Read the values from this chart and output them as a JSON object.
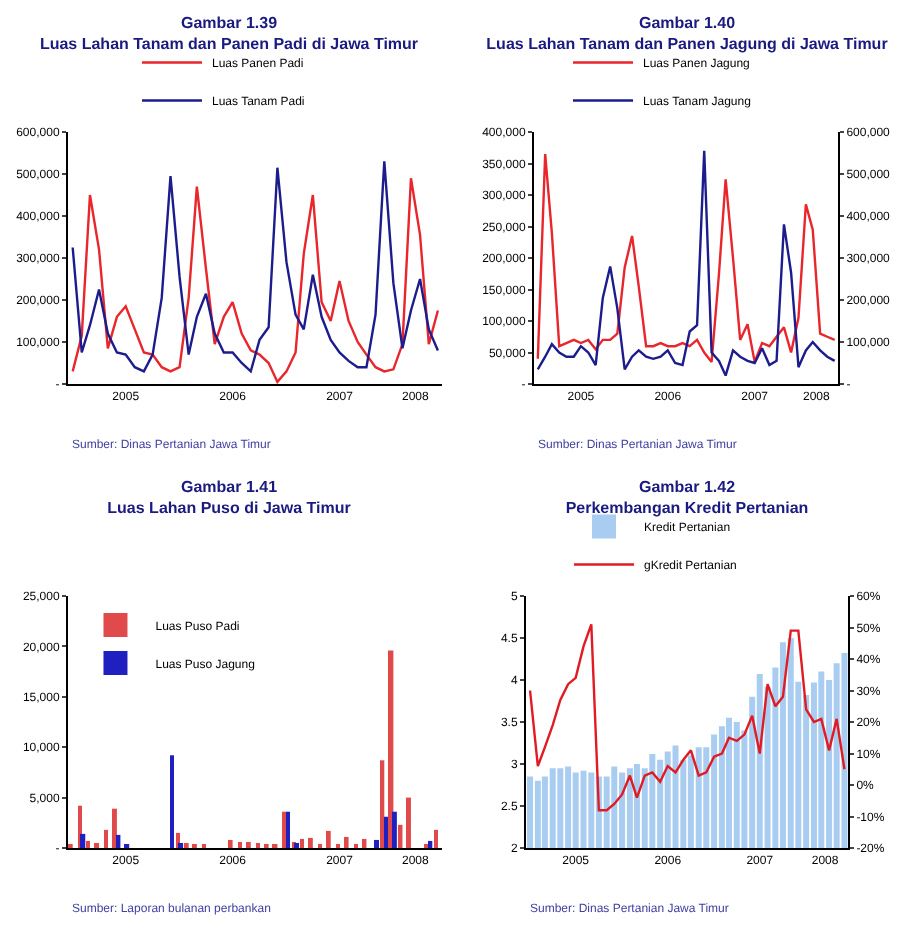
{
  "chart_data": [
    {
      "type": "line",
      "title": "Gambar 1.39",
      "subtitle": "Luas Lahan Tanam dan Panen Padi di Jawa Timur",
      "x": [
        "2005-01",
        "2005-02",
        "2005-03",
        "2005-04",
        "2005-05",
        "2005-06",
        "2005-07",
        "2005-08",
        "2005-09",
        "2005-10",
        "2005-11",
        "2005-12",
        "2006-01",
        "2006-02",
        "2006-03",
        "2006-04",
        "2006-05",
        "2006-06",
        "2006-07",
        "2006-08",
        "2006-09",
        "2006-10",
        "2006-11",
        "2006-12",
        "2007-01",
        "2007-02",
        "2007-03",
        "2007-04",
        "2007-05",
        "2007-06",
        "2007-07",
        "2007-08",
        "2007-09",
        "2007-10",
        "2007-11",
        "2007-12",
        "2008-01",
        "2008-02",
        "2008-03",
        "2008-04",
        "2008-05",
        "2008-06"
      ],
      "series": [
        {
          "name": "Luas Panen Padi",
          "color": "#e8262b",
          "values": [
            30000,
            115000,
            450000,
            320000,
            85000,
            160000,
            185000,
            130000,
            75000,
            70000,
            40000,
            30000,
            40000,
            205000,
            470000,
            275000,
            95000,
            160000,
            195000,
            120000,
            80000,
            70000,
            50000,
            5000,
            30000,
            75000,
            310000,
            450000,
            195000,
            150000,
            245000,
            150000,
            100000,
            70000,
            40000,
            30000,
            35000,
            95000,
            490000,
            355000,
            95000,
            175000
          ]
        },
        {
          "name": "Luas Tanam Padi",
          "color": "#1c1c8c",
          "values": [
            325000,
            75000,
            140000,
            225000,
            120000,
            75000,
            70000,
            40000,
            30000,
            70000,
            205000,
            495000,
            255000,
            70000,
            160000,
            215000,
            120000,
            75000,
            75000,
            50000,
            30000,
            105000,
            135000,
            515000,
            290000,
            165000,
            130000,
            260000,
            160000,
            105000,
            75000,
            55000,
            40000,
            40000,
            165000,
            530000,
            240000,
            85000,
            175000,
            250000,
            130000,
            80000
          ]
        }
      ],
      "xlim": [
        "2004-12-16",
        "2008-06-15"
      ],
      "xticks": [
        {
          "value": "2005-07-01",
          "label": "2005"
        },
        {
          "value": "2006-07-01",
          "label": "2006"
        },
        {
          "value": "2007-07-01",
          "label": "2007"
        },
        {
          "value": "2008-03-16",
          "label": "2008"
        }
      ],
      "ylim": [
        0,
        600000
      ],
      "yticks": [
        {
          "value": 0,
          "label": "-"
        },
        {
          "value": 100000,
          "label": "100,000"
        },
        {
          "value": 200000,
          "label": "200,000"
        },
        {
          "value": 300000,
          "label": "300,000"
        },
        {
          "value": 400000,
          "label": "400,000"
        },
        {
          "value": 500000,
          "label": "500,000"
        },
        {
          "value": 600000,
          "label": "600,000"
        }
      ],
      "legend": "top",
      "annotations": [
        "Sumber: Dinas Pertanian Jawa Timur"
      ]
    },
    {
      "type": "line",
      "title": "Gambar 1.40",
      "subtitle": "Luas Lahan Tanam dan Panen Jagung di Jawa Timur",
      "x": [
        "2005-01",
        "2005-02",
        "2005-03",
        "2005-04",
        "2005-05",
        "2005-06",
        "2005-07",
        "2005-08",
        "2005-09",
        "2005-10",
        "2005-11",
        "2005-12",
        "2006-01",
        "2006-02",
        "2006-03",
        "2006-04",
        "2006-05",
        "2006-06",
        "2006-07",
        "2006-08",
        "2006-09",
        "2006-10",
        "2006-11",
        "2006-12",
        "2007-01",
        "2007-02",
        "2007-03",
        "2007-04",
        "2007-05",
        "2007-06",
        "2007-07",
        "2007-08",
        "2007-09",
        "2007-10",
        "2007-11",
        "2007-12",
        "2008-01",
        "2008-02",
        "2008-03",
        "2008-04",
        "2008-05",
        "2008-06"
      ],
      "series": [
        {
          "name": "Luas Panen Jagung",
          "color": "#e8262b",
          "values": [
            40000,
            365000,
            240000,
            60000,
            65000,
            70000,
            65000,
            70000,
            55000,
            70000,
            70000,
            80000,
            185000,
            235000,
            155000,
            60000,
            60000,
            65000,
            60000,
            60000,
            65000,
            60000,
            70000,
            50000,
            35000,
            175000,
            325000,
            200000,
            70000,
            95000,
            35000,
            65000,
            60000,
            75000,
            90000,
            50000,
            105000,
            285000,
            245000,
            80000,
            75000,
            70000
          ]
        },
        {
          "name": "Luas Tanam Jagung",
          "color": "#1c1c8c",
          "axis": "y2",
          "values": [
            35000,
            65000,
            95000,
            75000,
            65000,
            65000,
            90000,
            75000,
            45000,
            205000,
            280000,
            180000,
            35000,
            65000,
            80000,
            65000,
            60000,
            65000,
            80000,
            50000,
            45000,
            125000,
            140000,
            555000,
            75000,
            55000,
            20000,
            80000,
            65000,
            55000,
            50000,
            85000,
            45000,
            55000,
            380000,
            265000,
            40000,
            80000,
            100000,
            80000,
            65000,
            55000
          ]
        }
      ],
      "xlim": [
        "2004-12-16",
        "2008-06-15"
      ],
      "xticks": [
        {
          "value": "2005-07-01",
          "label": "2005"
        },
        {
          "value": "2006-07-01",
          "label": "2006"
        },
        {
          "value": "2007-07-01",
          "label": "2007"
        },
        {
          "value": "2008-03-16",
          "label": "2008"
        }
      ],
      "ylim": [
        0,
        400000
      ],
      "yticks": [
        {
          "value": 0,
          "label": "-"
        },
        {
          "value": 50000,
          "label": "50,000"
        },
        {
          "value": 100000,
          "label": "100,000"
        },
        {
          "value": 150000,
          "label": "150,000"
        },
        {
          "value": 200000,
          "label": "200,000"
        },
        {
          "value": 250000,
          "label": "250,000"
        },
        {
          "value": 300000,
          "label": "300,000"
        },
        {
          "value": 350000,
          "label": "350,000"
        },
        {
          "value": 400000,
          "label": "400,000"
        }
      ],
      "y2lim": [
        0,
        600000
      ],
      "y2ticks": [
        {
          "value": 0,
          "label": "-"
        },
        {
          "value": 100000,
          "label": "100,000"
        },
        {
          "value": 200000,
          "label": "200,000"
        },
        {
          "value": 300000,
          "label": "300,000"
        },
        {
          "value": 400000,
          "label": "400,000"
        },
        {
          "value": 500000,
          "label": "500,000"
        },
        {
          "value": 600000,
          "label": "600,000"
        }
      ],
      "legend": "top",
      "annotations": [
        "Sumber: Dinas Pertanian Jawa Timur"
      ]
    },
    {
      "type": "bar",
      "title": "Gambar 1.41",
      "subtitle": "Luas Lahan Puso di Jawa Timur",
      "x": [
        "2005-01",
        "2005-02",
        "2005-03",
        "2005-04",
        "2005-05",
        "2005-06",
        "2005-07",
        "2005-08",
        "2005-09",
        "2005-10",
        "2005-11",
        "2005-12",
        "2006-01",
        "2006-02",
        "2006-03",
        "2006-04",
        "2006-05",
        "2006-06",
        "2006-07",
        "2006-08",
        "2006-09",
        "2006-10",
        "2006-11",
        "2006-12",
        "2007-01",
        "2007-02",
        "2007-03",
        "2007-04",
        "2007-05",
        "2007-06",
        "2007-07",
        "2007-08",
        "2007-09",
        "2007-10",
        "2007-11",
        "2007-12",
        "2008-01",
        "2008-02",
        "2008-03",
        "2008-04",
        "2008-05",
        "2008-06"
      ],
      "series": [
        {
          "name": "Luas Puso Padi",
          "color": "#e04a4a",
          "values": [
            200,
            4200,
            700,
            500,
            1800,
            3900,
            0,
            0,
            0,
            0,
            0,
            0,
            1500,
            500,
            200,
            300,
            0,
            0,
            800,
            600,
            600,
            500,
            200,
            200,
            3600,
            600,
            900,
            1000,
            400,
            1700,
            400,
            1100,
            300,
            900,
            0,
            8700,
            19600,
            2300,
            5000,
            0,
            200,
            1800
          ]
        },
        {
          "name": "Luas Puso Jagung",
          "color": "#2020c0",
          "values": [
            0,
            1400,
            0,
            0,
            0,
            1300,
            300,
            0,
            0,
            0,
            0,
            9200,
            500,
            0,
            0,
            0,
            0,
            0,
            0,
            0,
            0,
            0,
            0,
            0,
            3600,
            500,
            0,
            0,
            0,
            0,
            0,
            0,
            0,
            0,
            800,
            3100,
            3600,
            0,
            0,
            0,
            700,
            0
          ]
        }
      ],
      "xlim": [
        "2004-12-16",
        "2008-06-15"
      ],
      "xticks": [
        {
          "value": "2005-07-01",
          "label": "2005"
        },
        {
          "value": "2006-07-01",
          "label": "2006"
        },
        {
          "value": "2007-07-01",
          "label": "2007"
        },
        {
          "value": "2008-03-16",
          "label": "2008"
        }
      ],
      "ylim": [
        0,
        25000
      ],
      "yticks": [
        {
          "value": 0,
          "label": "-"
        },
        {
          "value": 5000,
          "label": "5,000"
        },
        {
          "value": 10000,
          "label": "10,000"
        },
        {
          "value": 15000,
          "label": "15,000"
        },
        {
          "value": 20000,
          "label": "20,000"
        },
        {
          "value": 25000,
          "label": "25,000"
        }
      ],
      "legend": "top left",
      "annotations": [
        "Sumber: Laporan bulanan perbankan"
      ]
    },
    {
      "type": "bar",
      "title": "Gambar 1.42",
      "subtitle": "Perkembangan Kredit Pertanian",
      "x": [
        "2005-01",
        "2005-02",
        "2005-03",
        "2005-04",
        "2005-05",
        "2005-06",
        "2005-07",
        "2005-08",
        "2005-09",
        "2005-10",
        "2005-11",
        "2005-12",
        "2006-01",
        "2006-02",
        "2006-03",
        "2006-04",
        "2006-05",
        "2006-06",
        "2006-07",
        "2006-08",
        "2006-09",
        "2006-10",
        "2006-11",
        "2006-12",
        "2007-01",
        "2007-02",
        "2007-03",
        "2007-04",
        "2007-05",
        "2007-06",
        "2007-07",
        "2007-08",
        "2007-09",
        "2007-10",
        "2007-11",
        "2007-12",
        "2008-01",
        "2008-02",
        "2008-03",
        "2008-04",
        "2008-05",
        "2008-06"
      ],
      "series": [
        {
          "name": "Kredit Pertanian",
          "color": "#a9cdf0",
          "values": [
            2.85,
            2.8,
            2.85,
            2.95,
            2.95,
            2.97,
            2.9,
            2.92,
            2.9,
            2.85,
            2.85,
            2.97,
            2.9,
            2.95,
            3.0,
            2.95,
            3.12,
            3.05,
            3.15,
            3.22,
            3.05,
            3.1,
            3.2,
            3.2,
            3.35,
            3.45,
            3.55,
            3.5,
            3.4,
            3.8,
            4.07,
            3.92,
            4.15,
            4.45,
            4.5,
            3.98,
            3.82,
            3.97,
            4.1,
            4.0,
            4.2,
            4.32
          ]
        },
        {
          "name": "gKredit Pertanian",
          "type": "line",
          "axis": "y2",
          "color": "#e01b24",
          "values": [
            30,
            6,
            12,
            19,
            27,
            32,
            34,
            44,
            51,
            -8,
            -8,
            -6,
            -3,
            3,
            -4,
            3,
            4,
            1,
            6,
            4,
            8,
            11,
            3,
            4,
            9,
            10,
            15,
            14,
            16,
            22,
            10,
            32,
            25,
            28,
            49,
            49,
            24,
            20,
            21,
            11,
            21,
            5
          ]
        }
      ],
      "xlim": [
        "2004-12-16",
        "2008-06-15"
      ],
      "xticks": [
        {
          "value": "2005-07-01",
          "label": "2005"
        },
        {
          "value": "2006-07-01",
          "label": "2006"
        },
        {
          "value": "2007-07-01",
          "label": "2007"
        },
        {
          "value": "2008-03-16",
          "label": "2008"
        }
      ],
      "ylim": [
        2,
        5
      ],
      "yticks": [
        2,
        2.5,
        3,
        3.5,
        4,
        4.5,
        5
      ],
      "y2lim": [
        -20,
        60
      ],
      "y2ticks": [
        {
          "value": -20,
          "label": "-20%"
        },
        {
          "value": -10,
          "label": "-10%"
        },
        {
          "value": 0,
          "label": "0%"
        },
        {
          "value": 10,
          "label": "10%"
        },
        {
          "value": 20,
          "label": "20%"
        },
        {
          "value": 30,
          "label": "30%"
        },
        {
          "value": 40,
          "label": "40%"
        },
        {
          "value": 50,
          "label": "50%"
        },
        {
          "value": 60,
          "label": "60%"
        }
      ],
      "legend": "top",
      "annotations": [
        "Sumber: Dinas Pertanian Jawa Timur"
      ]
    }
  ]
}
